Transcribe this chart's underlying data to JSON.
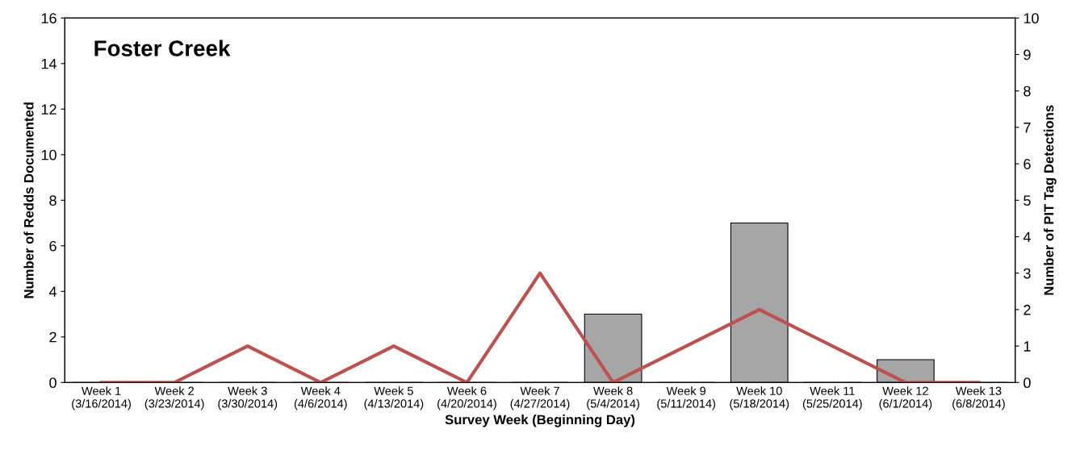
{
  "chart_data": {
    "type": "bar",
    "title": "Foster Creek",
    "xlabel": "Survey Week (Beginning Day)",
    "ylabel": "Number of Redds Documented",
    "y2label": "Number of PIT Tag Detections",
    "categories": [
      "Week 1\n(3/16/2014)",
      "Week 2\n(3/23/2014)",
      "Week 3\n(3/30/2014)",
      "Week 4\n(4/6/2014)",
      "Week 5\n(4/13/2014)",
      "Week 6\n(4/20/2014)",
      "Week 7\n(4/27/2014)",
      "Week 8\n(5/4/2014)",
      "Week 9\n(5/11/2014)",
      "Week 10\n(5/18/2014)",
      "Week 11\n(5/25/2014)",
      "Week 12\n(6/1/2014)",
      "Week 13\n(6/8/2014)"
    ],
    "series": [
      {
        "color": "#a6a6a6",
        "values": [
          0,
          0,
          0,
          0,
          0,
          0,
          0,
          3,
          0,
          7,
          0,
          1,
          0
        ]
      },
      {
        "type": "line",
        "axis": "y2",
        "color": "#c0504d",
        "values": [
          0,
          0,
          1,
          0,
          1,
          0,
          3,
          0,
          1,
          2,
          1,
          0,
          0
        ]
      }
    ],
    "ylim": [
      0,
      16
    ],
    "yticks": [
      0,
      2,
      4,
      6,
      8,
      10,
      12,
      14,
      16
    ],
    "y2lim": [
      0,
      10
    ],
    "y2ticks": [
      0,
      1,
      2,
      3,
      4,
      5,
      6,
      7,
      8,
      9,
      10
    ],
    "grid": false,
    "legend": false,
    "marker": "none",
    "line_style": "solid"
  }
}
